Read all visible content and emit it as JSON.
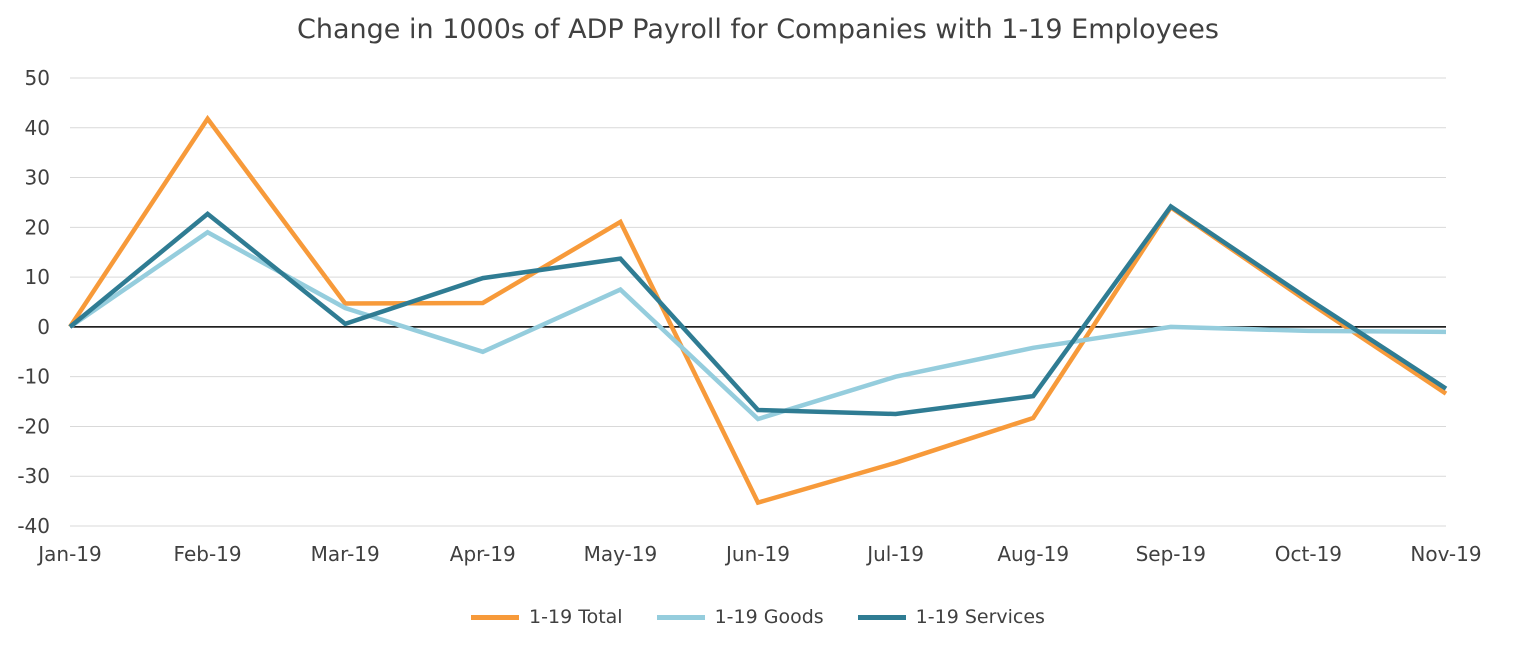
{
  "chart_data": {
    "type": "line",
    "title": "Change in 1000s of ADP Payroll for Companies with 1-19 Employees",
    "xlabel": "",
    "ylabel": "",
    "categories": [
      "Jan-19",
      "Feb-19",
      "Mar-19",
      "Apr-19",
      "May-19",
      "Jun-19",
      "Jul-19",
      "Aug-19",
      "Sep-19",
      "Oct-19",
      "Nov-19"
    ],
    "ylim": [
      -40,
      50
    ],
    "yticks": [
      "50",
      "40",
      "30",
      "20",
      "10",
      "0",
      "-10",
      "-20",
      "-30",
      "-40"
    ],
    "grid": true,
    "legend_position": "bottom",
    "series": [
      {
        "name": "1-19 Total",
        "color": "#F79A3A",
        "values": [
          0,
          41.8,
          4.7,
          4.8,
          21.1,
          -35.3,
          -27.3,
          -18.3,
          24.0,
          5.0,
          -13.4
        ]
      },
      {
        "name": "1-19 Goods",
        "color": "#95CDDD",
        "values": [
          0,
          19.0,
          3.8,
          -5.0,
          7.5,
          -18.5,
          -10.0,
          -4.2,
          0.0,
          -0.8,
          -1.0
        ]
      },
      {
        "name": "1-19 Services",
        "color": "#2F7C93",
        "values": [
          0,
          22.7,
          0.6,
          9.8,
          13.7,
          -16.7,
          -17.5,
          -13.9,
          24.2,
          5.6,
          -12.4
        ]
      }
    ]
  }
}
